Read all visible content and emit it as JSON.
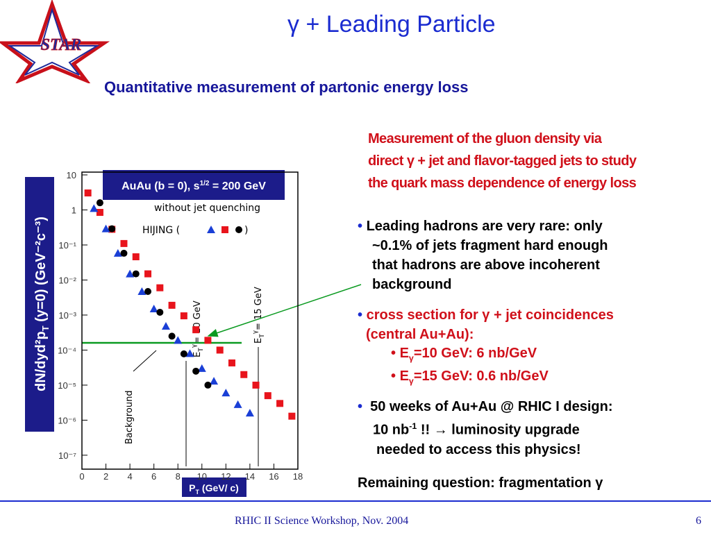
{
  "header": {
    "logo": "STAR",
    "title": "γ + Leading Particle",
    "subtitle": "Quantitative measurement of partonic energy loss"
  },
  "highlight": [
    "Measurement of the gluon density via",
    "direct γ + jet and flavor-tagged jets to study",
    "the quark mass dependence of energy loss"
  ],
  "bullets": [
    {
      "lines": [
        "Leading hadrons are very rare: only",
        "~0.1% of jets fragment hard enough",
        "that hadrons are above incoherent",
        "background"
      ]
    },
    {
      "lines": [
        "cross section for γ + jet coincidences",
        "(central Au+Au):"
      ],
      "items": [
        {
          "e": "E",
          "sub": "γ",
          "text": "=10 GeV: 6 nb/GeV"
        },
        {
          "e": "E",
          "sub": "γ",
          "text": "=15 GeV: 0.6 nb/GeV"
        }
      ]
    },
    {
      "lines": [
        "50 weeks of Au+Au @ RHIC I design:"
      ],
      "line2": {
        "a": "10 nb",
        "sup": "-1",
        "b": " !!  → luminosity upgrade"
      },
      "line3": "needed to access this physics!"
    }
  ],
  "question": "Remaining question: fragmentation γ",
  "chart_data": {
    "type": "scatter",
    "box": {
      "a": "AuAu (b = 0), s",
      "sup": "1/2",
      "b": " = 200 GeV"
    },
    "legend_title": "without jet quenching",
    "legend_open": "HIJING (",
    "legend_close": ")",
    "ylabel": {
      "a": "dN/dyd²p",
      "sub": "T",
      "b": " (y=0) (GeV⁻²c⁻³)"
    },
    "xlabel": {
      "a": "P",
      "sub": "T",
      "b": " (GeV/ c)"
    },
    "annotations": [
      {
        "text": "E",
        "sub": "T",
        "sup": "γ",
        "rest": "= 10 GeV"
      },
      {
        "text": "E",
        "sub": "T",
        "sup": "γ",
        "rest": "= 15 GeV"
      },
      {
        "text": "Background"
      }
    ],
    "log_y": true,
    "xlim": [
      0,
      18
    ],
    "xticks": [
      0,
      2,
      4,
      6,
      8,
      10,
      12,
      14,
      16,
      18
    ],
    "ylim": [
      4e-08,
      12
    ],
    "yticks": [
      10,
      1,
      {
        "value": 0.1,
        "label": "10⁻¹"
      },
      {
        "value": 0.01,
        "label": "10⁻²"
      },
      {
        "value": 0.001,
        "label": "10⁻³"
      },
      {
        "value": 0.0001,
        "label": "10⁻⁴"
      },
      {
        "value": 1e-05,
        "label": "10⁻⁵"
      },
      {
        "value": 1e-06,
        "label": "10⁻⁶"
      },
      {
        "value": 1e-07,
        "label": "10⁻⁷"
      }
    ],
    "series": [
      {
        "color": "#e8141c",
        "marker": "square",
        "x": [
          0.5,
          1.5,
          2.5,
          3.5,
          4.5,
          5.5,
          6.5,
          7.5,
          8.5,
          9.5,
          10.5,
          11.5,
          12.5,
          13.5,
          14.5,
          15.5,
          16.5,
          17.5
        ],
        "values": [
          3.05,
          0.85,
          0.28,
          0.11,
          0.046,
          0.015,
          0.006,
          0.0019,
          0.00095,
          0.00038,
          0.00019,
          0.0001,
          4.3e-05,
          2e-05,
          1e-05,
          5e-06,
          3e-06,
          1.3e-06
        ]
      },
      {
        "color": "#1a3fd6",
        "marker": "triangle",
        "x": [
          1,
          2,
          3,
          4,
          5,
          6,
          7,
          8,
          9,
          10,
          11,
          12,
          13,
          14
        ],
        "values": [
          1.1,
          0.29,
          0.058,
          0.015,
          0.0047,
          0.0015,
          0.00048,
          0.00019,
          8e-05,
          3e-05,
          1.3e-05,
          6e-06,
          2.8e-06,
          1.6e-06
        ]
      },
      {
        "color": "#000000",
        "marker": "circle",
        "x": [
          1.5,
          2.5,
          3.5,
          4.5,
          5.5,
          6.5,
          7.5,
          8.5,
          9.5,
          10.5
        ],
        "values": [
          1.6,
          0.29,
          0.058,
          0.015,
          0.0047,
          0.0012,
          0.00025,
          7.8e-05,
          2.5e-05,
          1e-05
        ]
      }
    ]
  },
  "footer": {
    "event": "RHIC II Science Workshop, Nov. 2004",
    "page": "6"
  }
}
